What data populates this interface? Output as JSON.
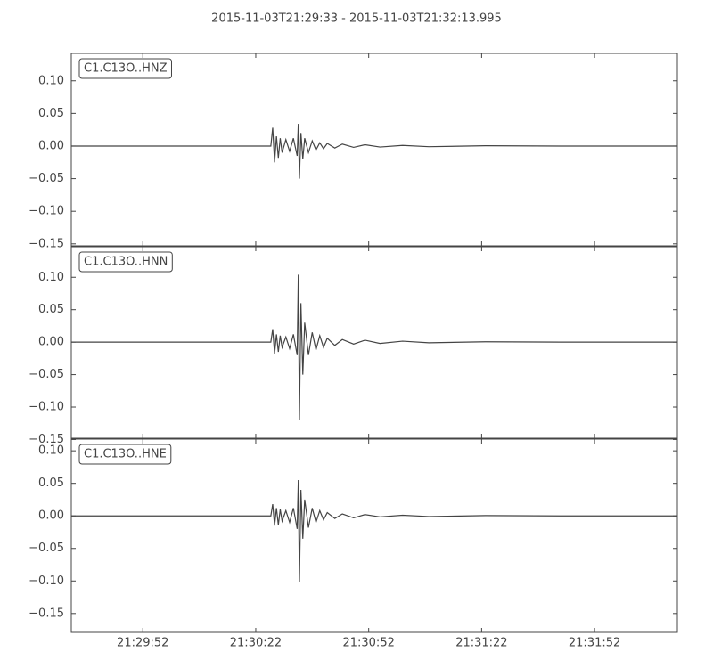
{
  "title": "2015-11-03T21:29:33  -  2015-11-03T21:32:13.995",
  "chart_data": [
    {
      "type": "line",
      "xlim": [
        0,
        160.995
      ],
      "ylim": [
        -0.153,
        0.142
      ],
      "yticks": [
        {
          "value": -0.15,
          "label": "−0.15"
        },
        {
          "value": -0.1,
          "label": "−0.10"
        },
        {
          "value": -0.05,
          "label": "−0.05"
        },
        {
          "value": 0,
          "label": "0.00"
        },
        {
          "value": 0.05,
          "label": "0.05"
        },
        {
          "value": 0.1,
          "label": "0.10"
        }
      ],
      "x": [
        0,
        30,
        53,
        53.5,
        54,
        54.5,
        55,
        55.5,
        56,
        57,
        58,
        59,
        60,
        60.3,
        60.6,
        61,
        61.5,
        62,
        63,
        64,
        65,
        66,
        67,
        68,
        70,
        72,
        75,
        78,
        82,
        88,
        95,
        110,
        130,
        161
      ],
      "series": [
        {
          "name": "C1.C13O..HNZ",
          "color": "#444444",
          "values": [
            0,
            0,
            0,
            0.028,
            -0.025,
            0.015,
            -0.018,
            0.012,
            -0.01,
            0.01,
            -0.008,
            0.012,
            -0.015,
            0.034,
            -0.05,
            0.02,
            -0.02,
            0.012,
            -0.01,
            0.008,
            -0.006,
            0.005,
            -0.004,
            0.004,
            -0.003,
            0.003,
            -0.002,
            0.002,
            -0.0015,
            0.001,
            -0.001,
            0.0005,
            0,
            0
          ]
        }
      ]
    },
    {
      "type": "line",
      "xlim": [
        0,
        160.995
      ],
      "ylim": [
        -0.148,
        0.147
      ],
      "yticks": [
        {
          "value": -0.15,
          "label": "−0.15"
        },
        {
          "value": -0.1,
          "label": "−0.10"
        },
        {
          "value": -0.05,
          "label": "−0.05"
        },
        {
          "value": 0,
          "label": "0.00"
        },
        {
          "value": 0.05,
          "label": "0.05"
        },
        {
          "value": 0.1,
          "label": "0.10"
        }
      ],
      "x": [
        0,
        30,
        53,
        53.5,
        54,
        54.5,
        55,
        55.5,
        56,
        57,
        58,
        59,
        60,
        60.3,
        60.6,
        61,
        61.5,
        62,
        63,
        64,
        65,
        66,
        67,
        68,
        70,
        72,
        75,
        78,
        82,
        88,
        95,
        110,
        130,
        161
      ],
      "series": [
        {
          "name": "C1.C13O..HNN",
          "color": "#444444",
          "values": [
            0,
            0,
            0,
            0.02,
            -0.018,
            0.012,
            -0.015,
            0.01,
            -0.008,
            0.008,
            -0.01,
            0.012,
            -0.02,
            0.104,
            -0.12,
            0.06,
            -0.05,
            0.03,
            -0.02,
            0.015,
            -0.012,
            0.01,
            -0.008,
            0.006,
            -0.005,
            0.004,
            -0.003,
            0.003,
            -0.002,
            0.0015,
            -0.001,
            0.0005,
            0,
            0
          ]
        }
      ]
    },
    {
      "type": "line",
      "xlim": [
        0,
        160.995
      ],
      "ylim": [
        -0.179,
        0.118
      ],
      "yticks": [
        {
          "value": -0.15,
          "label": "−0.15"
        },
        {
          "value": -0.1,
          "label": "−0.10"
        },
        {
          "value": -0.05,
          "label": "−0.05"
        },
        {
          "value": 0,
          "label": "0.00"
        },
        {
          "value": 0.05,
          "label": "0.05"
        },
        {
          "value": 0.1,
          "label": "0.10"
        }
      ],
      "xticks": [
        {
          "value": 19,
          "label": "21:29:52"
        },
        {
          "value": 49,
          "label": "21:30:22"
        },
        {
          "value": 79,
          "label": "21:30:52"
        },
        {
          "value": 109,
          "label": "21:31:22"
        },
        {
          "value": 139,
          "label": "21:31:52"
        }
      ],
      "x": [
        0,
        30,
        53,
        53.5,
        54,
        54.5,
        55,
        55.5,
        56,
        57,
        58,
        59,
        60,
        60.3,
        60.6,
        61,
        61.5,
        62,
        63,
        64,
        65,
        66,
        67,
        68,
        70,
        72,
        75,
        78,
        82,
        88,
        95,
        110,
        130,
        161
      ],
      "series": [
        {
          "name": "C1.C13O..HNE",
          "color": "#444444",
          "values": [
            0,
            0,
            0,
            0.018,
            -0.015,
            0.012,
            -0.014,
            0.01,
            -0.008,
            0.008,
            -0.01,
            0.012,
            -0.02,
            0.055,
            -0.102,
            0.04,
            -0.035,
            0.025,
            -0.018,
            0.012,
            -0.01,
            0.008,
            -0.006,
            0.005,
            -0.004,
            0.003,
            -0.003,
            0.002,
            -0.0015,
            0.001,
            -0.001,
            0.0005,
            0,
            0
          ]
        }
      ]
    }
  ]
}
